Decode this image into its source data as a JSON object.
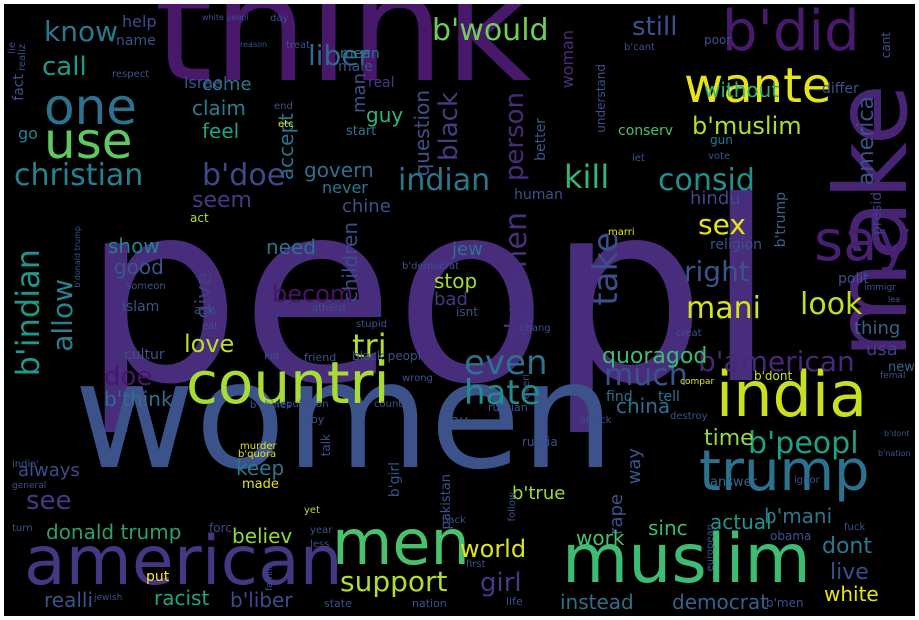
{
  "palette": {
    "background": "#000000",
    "colors": [
      "#440154",
      "#482777",
      "#3f4a8a",
      "#31678e",
      "#26838f",
      "#1f9d8a",
      "#6cce5a",
      "#b6de2b",
      "#fee825"
    ]
  },
  "words": [
    {
      "text": "peopl",
      "color": "#472d7b"
    },
    {
      "text": "women",
      "color": "#3b528b"
    },
    {
      "text": "think",
      "color": "#48186a"
    },
    {
      "text": "make",
      "color": "#482475"
    },
    {
      "text": "india",
      "color": "#c8e020"
    },
    {
      "text": "countri",
      "color": "#a8db34"
    },
    {
      "text": "muslim",
      "color": "#3fbc73"
    },
    {
      "text": "american",
      "color": "#453781"
    },
    {
      "text": "trump",
      "color": "#2c728e"
    },
    {
      "text": "men",
      "color": "#4ac16d"
    },
    {
      "text": "one",
      "color": "#2c728e"
    },
    {
      "text": "use",
      "color": "#5ec962"
    },
    {
      "text": "wante",
      "color": "#e5e419"
    },
    {
      "text": "b'did",
      "color": "#481a6c"
    },
    {
      "text": "say",
      "color": "#482071"
    },
    {
      "text": "christian",
      "color": "#26828e"
    },
    {
      "text": "b'doe",
      "color": "#3e4989"
    },
    {
      "text": "indian",
      "color": "#2a788e"
    },
    {
      "text": "kill",
      "color": "#35b779"
    },
    {
      "text": "consid",
      "color": "#21918c"
    },
    {
      "text": "b'indian",
      "color": "#1f988b"
    },
    {
      "text": "b'women",
      "color": "#46317e"
    },
    {
      "text": "b'would",
      "color": "#6ece58"
    },
    {
      "text": "b'peopl",
      "color": "#1fa188"
    },
    {
      "text": "b'american",
      "color": "#482878"
    },
    {
      "text": "mani",
      "color": "#d8e219"
    },
    {
      "text": "look",
      "color": "#c2df23"
    },
    {
      "text": "take",
      "color": "#3d4e8a"
    },
    {
      "text": "even",
      "color": "#2c728e"
    },
    {
      "text": "hate",
      "color": "#228c8d"
    },
    {
      "text": "much",
      "color": "#3b528b"
    },
    {
      "text": "tri",
      "color": "#b5de2b"
    },
    {
      "text": "allow",
      "color": "#26828e"
    },
    {
      "text": "know",
      "color": "#2a788e"
    },
    {
      "text": "call",
      "color": "#1e9c89"
    },
    {
      "text": "liber",
      "color": "#31688e"
    },
    {
      "text": "black",
      "color": "#433e85"
    },
    {
      "text": "person",
      "color": "#472c7a"
    },
    {
      "text": "woman",
      "color": "#472f7d"
    },
    {
      "text": "still",
      "color": "#3b528b"
    },
    {
      "text": "b'muslim",
      "color": "#b0dd2f"
    },
    {
      "text": "without",
      "color": "#2db27d"
    },
    {
      "text": "america",
      "color": "#3b528b"
    },
    {
      "text": "usa",
      "color": "#433e85"
    },
    {
      "text": "claim",
      "color": "#287d8e"
    },
    {
      "text": "feel",
      "color": "#1fa088"
    },
    {
      "text": "guy",
      "color": "#31b57b"
    },
    {
      "text": "come",
      "color": "#2a788e"
    },
    {
      "text": "help",
      "color": "#3e4a89"
    },
    {
      "text": "israel",
      "color": "#3a548c"
    },
    {
      "text": "name",
      "color": "#3b528b"
    },
    {
      "text": "accept",
      "color": "#2c728e"
    },
    {
      "text": "question",
      "color": "#3b528b"
    },
    {
      "text": "govern",
      "color": "#2e6f8e"
    },
    {
      "text": "never",
      "color": "#2a788e"
    },
    {
      "text": "chine",
      "color": "#3b528b"
    },
    {
      "text": "seem",
      "color": "#443b84"
    },
    {
      "text": "better",
      "color": "#39568c"
    },
    {
      "text": "sex",
      "color": "#e2e418"
    },
    {
      "text": "hindu",
      "color": "#3e4989"
    },
    {
      "text": "b'trump",
      "color": "#31678e"
    },
    {
      "text": "presid",
      "color": "#433e85"
    },
    {
      "text": "show",
      "color": "#26818e"
    },
    {
      "text": "good",
      "color": "#38588c"
    },
    {
      "text": "need",
      "color": "#2c718e"
    },
    {
      "text": "give",
      "color": "#433d84"
    },
    {
      "text": "children",
      "color": "#3e4c8a"
    },
    {
      "text": "becom",
      "color": "#481467"
    },
    {
      "text": "right",
      "color": "#3a548c"
    },
    {
      "text": "stop",
      "color": "#a5db36"
    },
    {
      "text": "bad",
      "color": "#443983"
    },
    {
      "text": "jew",
      "color": "#2c728e"
    },
    {
      "text": "love",
      "color": "#b8de29"
    },
    {
      "text": "doe",
      "color": "#481769"
    },
    {
      "text": "quoragod",
      "color": "#3dbc74"
    },
    {
      "text": "thing",
      "color": "#34618d"
    },
    {
      "text": "polit",
      "color": "#3b528b"
    },
    {
      "text": "religion",
      "color": "#3b528b"
    },
    {
      "text": "b'think",
      "color": "#2e6e8e"
    },
    {
      "text": "china",
      "color": "#2d708e"
    },
    {
      "text": "b'mani",
      "color": "#2a778e"
    },
    {
      "text": "time",
      "color": "#95d840"
    },
    {
      "text": "way",
      "color": "#38588c"
    },
    {
      "text": "rape",
      "color": "#3a538b"
    },
    {
      "text": "keep",
      "color": "#2a778e"
    },
    {
      "text": "always",
      "color": "#3e4c8a"
    },
    {
      "text": "see",
      "color": "#443b84"
    },
    {
      "text": "donald trump",
      "color": "#2ea069"
    },
    {
      "text": "believ",
      "color": "#8fd744"
    },
    {
      "text": "world",
      "color": "#e0e31a"
    },
    {
      "text": "support",
      "color": "#b2dd2d"
    },
    {
      "text": "girl",
      "color": "#443983"
    },
    {
      "text": "work",
      "color": "#46c06f"
    },
    {
      "text": "sinc",
      "color": "#38b977"
    },
    {
      "text": "actual",
      "color": "#1f968b"
    },
    {
      "text": "dont",
      "color": "#2a788e"
    },
    {
      "text": "live",
      "color": "#3c4f8a"
    },
    {
      "text": "white",
      "color": "#e7e419"
    },
    {
      "text": "b'true",
      "color": "#a0da39"
    },
    {
      "text": "racist",
      "color": "#21a685"
    },
    {
      "text": "realli",
      "color": "#39568c"
    },
    {
      "text": "b'liber",
      "color": "#3e4c8a"
    },
    {
      "text": "instead",
      "color": "#2e6f8e"
    },
    {
      "text": "democrat",
      "color": "#32648e"
    },
    {
      "text": "b'men",
      "color": "#3b528b"
    },
    {
      "text": "put",
      "color": "#fde725"
    },
    {
      "text": "made",
      "color": "#e2e418"
    },
    {
      "text": "forc",
      "color": "#3e4989"
    },
    {
      "text": "b'dont",
      "color": "#d2e21b"
    },
    {
      "text": "human",
      "color": "#3b528b"
    },
    {
      "text": "gun",
      "color": "#2a788e"
    },
    {
      "text": "obama",
      "color": "#3b528b"
    },
    {
      "text": "answer",
      "color": "#31678e"
    },
    {
      "text": "find",
      "color": "#2d708e"
    },
    {
      "text": "tell",
      "color": "#2a788e"
    },
    {
      "text": "new",
      "color": "#31678e"
    },
    {
      "text": "islam",
      "color": "#3a548c"
    },
    {
      "text": "ask",
      "color": "#3b528b"
    },
    {
      "text": "cultur",
      "color": "#3b528b"
    },
    {
      "text": "act",
      "color": "#b5de2b"
    },
    {
      "text": "eat",
      "color": "#3b528b"
    },
    {
      "text": "b'quora",
      "color": "#e5e419"
    },
    {
      "text": "man",
      "color": "#3b528b"
    },
    {
      "text": "male",
      "color": "#3b528b"
    },
    {
      "text": "mean",
      "color": "#2a788e"
    },
    {
      "text": "real",
      "color": "#443983"
    },
    {
      "text": "start",
      "color": "#2a788e"
    },
    {
      "text": "understand",
      "color": "#3b528b"
    },
    {
      "text": "conserv",
      "color": "#4ac16d"
    },
    {
      "text": "b'cant",
      "color": "#3b528b"
    },
    {
      "text": "differ",
      "color": "#3b528b"
    },
    {
      "text": "cant",
      "color": "#3b528b"
    },
    {
      "text": "poor",
      "color": "#3b528b"
    },
    {
      "text": "vote",
      "color": "#3b528b"
    },
    {
      "text": "let",
      "color": "#3b528b"
    },
    {
      "text": "day",
      "color": "#3b528b"
    },
    {
      "text": "white peopl",
      "color": "#3b528b"
    },
    {
      "text": "respect",
      "color": "#3b528b"
    },
    {
      "text": "fact",
      "color": "#3b528b"
    },
    {
      "text": "lie",
      "color": "#3b528b"
    },
    {
      "text": "realiz",
      "color": "#3b528b"
    },
    {
      "text": "go",
      "color": "#26828e"
    },
    {
      "text": "end",
      "color": "#3b528b"
    },
    {
      "text": "etc",
      "color": "#e2e418"
    },
    {
      "text": "treat",
      "color": "#3b528b"
    },
    {
      "text": "reason",
      "color": "#3b528b"
    },
    {
      "text": "immigr",
      "color": "#3b528b"
    },
    {
      "text": "creat",
      "color": "#3b528b"
    },
    {
      "text": "compar",
      "color": "#e2e418"
    },
    {
      "text": "wrong",
      "color": "#3b528b"
    },
    {
      "text": "black peopl",
      "color": "#3b528b"
    },
    {
      "text": "friend",
      "color": "#3b528b"
    },
    {
      "text": "kid",
      "color": "#3b528b"
    },
    {
      "text": "republican",
      "color": "#3b528b"
    },
    {
      "text": "countri'",
      "color": "#3b528b"
    },
    {
      "text": "russian",
      "color": "#3b528b"
    },
    {
      "text": "gay",
      "color": "#3b528b"
    },
    {
      "text": "russia",
      "color": "#3b528b"
    },
    {
      "text": "pakistan",
      "color": "#3b528b"
    },
    {
      "text": "b'girl",
      "color": "#3b528b"
    },
    {
      "text": "talk",
      "color": "#3b528b"
    },
    {
      "text": "murder",
      "color": "#e2e418"
    },
    {
      "text": "b'chines",
      "color": "#3b528b"
    },
    {
      "text": "boy",
      "color": "#3b528b"
    },
    {
      "text": "yet",
      "color": "#b5de2b"
    },
    {
      "text": "year",
      "color": "#3b528b"
    },
    {
      "text": "less",
      "color": "#3b528b"
    },
    {
      "text": "state",
      "color": "#3b528b"
    },
    {
      "text": "nation",
      "color": "#3b528b"
    },
    {
      "text": "life",
      "color": "#3b528b"
    },
    {
      "text": "first",
      "color": "#3b528b"
    },
    {
      "text": "back",
      "color": "#3b528b"
    },
    {
      "text": "follow",
      "color": "#3b528b"
    },
    {
      "text": "attack",
      "color": "#3b528b"
    },
    {
      "text": "destroy",
      "color": "#3b528b"
    },
    {
      "text": "fuck",
      "color": "#3b528b"
    },
    {
      "text": "european",
      "color": "#3b528b"
    },
    {
      "text": "ignor",
      "color": "#3b528b"
    },
    {
      "text": "marri",
      "color": "#e2e418"
    },
    {
      "text": "someon",
      "color": "#3b528b"
    },
    {
      "text": "atheist",
      "color": "#3b528b"
    },
    {
      "text": "stupid",
      "color": "#3b528b"
    },
    {
      "text": "isnt",
      "color": "#3b528b"
    },
    {
      "text": "b'democrat",
      "color": "#3b528b"
    },
    {
      "text": "b'donald trump",
      "color": "#3b528b"
    },
    {
      "text": "jewish",
      "color": "#3b528b"
    },
    {
      "text": "famili",
      "color": "#3b528b"
    },
    {
      "text": "turn",
      "color": "#3b528b"
    },
    {
      "text": "general",
      "color": "#3b528b"
    },
    {
      "text": "india'",
      "color": "#3b528b"
    },
    {
      "text": "everi",
      "color": "#3b528b"
    },
    {
      "text": "chang",
      "color": "#3b528b"
    },
    {
      "text": "femal",
      "color": "#3b528b"
    },
    {
      "text": "b'nation",
      "color": "#3b528b"
    },
    {
      "text": "b'dont",
      "color": "#3b528b"
    },
    {
      "text": "lea",
      "color": "#3b528b"
    }
  ]
}
